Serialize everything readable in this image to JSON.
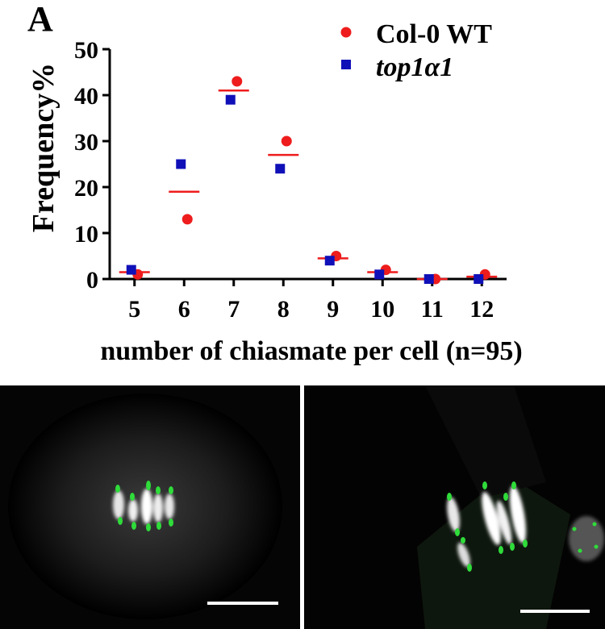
{
  "panel_letter": "A",
  "chart_data": {
    "type": "scatter",
    "xlabel": "number of chiasmate per cell (n=95)",
    "ylabel": "Frequency%",
    "categories": [
      "5",
      "6",
      "7",
      "8",
      "9",
      "10",
      "11",
      "12"
    ],
    "ylim": [
      0,
      50
    ],
    "yticks": [
      0,
      10,
      20,
      30,
      40,
      50
    ],
    "grid": false,
    "legend_position": "top-right",
    "series": [
      {
        "name": "Col-0 WT",
        "marker": "circle",
        "color": "#ee1c1c",
        "values": [
          1,
          13,
          43,
          30,
          5,
          2,
          0,
          1
        ]
      },
      {
        "name": "top1α1",
        "marker": "square",
        "color": "#1010b8",
        "italic": true,
        "values": [
          2,
          25,
          39,
          24,
          4,
          1,
          0,
          0
        ]
      }
    ],
    "mean_lines": {
      "color": "#ee1c1c",
      "values": [
        1.5,
        19,
        41,
        27,
        4.5,
        1.5,
        0,
        0.5
      ]
    }
  },
  "micrographs": [
    {
      "name": "left-micrograph",
      "scale_bar": true
    },
    {
      "name": "right-micrograph",
      "scale_bar": true
    }
  ]
}
